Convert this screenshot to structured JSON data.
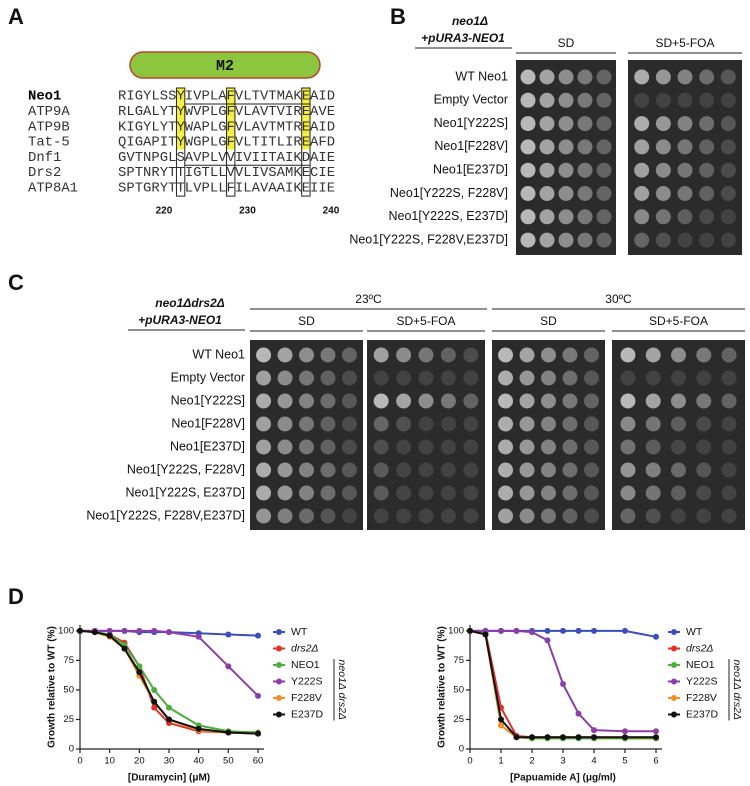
{
  "panel_labels": [
    "A",
    "B",
    "C",
    "D"
  ],
  "alignment": {
    "domain": "M2",
    "rows": [
      {
        "name": "Neo1",
        "sequence": "RIGYLSSYIVPLAFVLTVTMAKEAID"
      },
      {
        "name": "ATP9A",
        "sequence": "RLGALYTYWVPLGFVLAVTVIREAVE"
      },
      {
        "name": "ATP9B",
        "sequence": "KIGYLYTYWAPLGFVLAVTMTREAID"
      },
      {
        "name": "Tat-5",
        "sequence": "QIGAPITYWGPLGFVLTITLIREAFD"
      },
      {
        "name": "Dnf1",
        "sequence": "GVTNPGLSAVPLVVIVIITAIKDAIE"
      },
      {
        "name": "Drs2",
        "sequence": "SPTNRYTTIGTLLVVLIVSAMKECIE"
      },
      {
        "name": "ATP8A1",
        "sequence": "SPTGRYTTLVPLLFILAVAAIKEIIE"
      }
    ],
    "positions": [
      220,
      230,
      240
    ]
  },
  "panel_b": {
    "genotype": "neo1Δ",
    "plasmid": "+pURA3-NEO1",
    "media": [
      "SD",
      "SD+5-FOA"
    ],
    "strains": [
      "WT Neo1",
      "Empty Vector",
      "Neo1[Y222S]",
      "Neo1[F228V]",
      "Neo1[E237D]",
      "Neo1[Y222S, F228V]",
      "Neo1[Y222S, E237D]",
      "Neo1[Y222S, F228V,E237D]"
    ]
  },
  "panel_c": {
    "genotype": "neo1Δdrs2Δ",
    "plasmid": "+pURA3-NEO1",
    "temperatures": [
      "23ºC",
      "30ºC"
    ],
    "media": [
      "SD",
      "SD+5-FOA",
      "SD",
      "SD+5-FOA"
    ],
    "strains": [
      "WT Neo1",
      "Empty Vector",
      "Neo1[Y222S]",
      "Neo1[F228V]",
      "Neo1[E237D]",
      "Neo1[Y222S, F228V]",
      "Neo1[Y222S, E237D]",
      "Neo1[Y222S, F228V,E237D]"
    ]
  },
  "chart_data": [
    {
      "type": "line",
      "xlabel": "[Duramycin] (μM)",
      "ylabel": "Growth relative to WT (%)",
      "x": [
        0,
        5,
        10,
        15,
        20,
        25,
        30,
        40,
        50,
        60
      ],
      "xlim": [
        0,
        60
      ],
      "ylim": [
        0,
        105
      ],
      "xticks": [
        0,
        10,
        20,
        30,
        40,
        50,
        60
      ],
      "yticks": [
        0,
        25,
        50,
        75,
        100
      ],
      "legend_group_label": "neo1Δ drs2Δ",
      "series": [
        {
          "name": "WT",
          "color": "#3b4fb8",
          "values": [
            100,
            100,
            100,
            100,
            99,
            99,
            99,
            98,
            97,
            96
          ]
        },
        {
          "name": "drs2Δ",
          "color": "#e0322b",
          "values": [
            100,
            99,
            97,
            90,
            70,
            35,
            22,
            15,
            14,
            13
          ]
        },
        {
          "name": "NEO1",
          "color": "#4cae3c",
          "values": [
            100,
            99,
            97,
            88,
            70,
            50,
            35,
            20,
            15,
            14
          ]
        },
        {
          "name": "Y222S",
          "color": "#8a3fa8",
          "values": [
            100,
            100,
            100,
            100,
            100,
            100,
            99,
            95,
            70,
            45
          ]
        },
        {
          "name": "F228V",
          "color": "#f0902a",
          "values": [
            100,
            99,
            95,
            85,
            62,
            40,
            25,
            16,
            14,
            13
          ]
        },
        {
          "name": "E237D",
          "color": "#111111",
          "values": [
            100,
            99,
            96,
            85,
            65,
            40,
            25,
            17,
            14,
            13
          ]
        }
      ]
    },
    {
      "type": "line",
      "xlabel": "[Papuamide A] (μg/ml)",
      "ylabel": "Growth relative to WT (%)",
      "x": [
        0,
        0.5,
        1,
        1.5,
        2,
        2.5,
        3,
        3.5,
        4,
        5,
        6
      ],
      "xlim": [
        0,
        6
      ],
      "ylim": [
        0,
        105
      ],
      "xticks": [
        0,
        1,
        2,
        3,
        4,
        5,
        6
      ],
      "yticks": [
        0,
        25,
        50,
        75,
        100
      ],
      "legend_group_label": "neo1Δ drs2Δ",
      "series": [
        {
          "name": "WT",
          "color": "#3b4fb8",
          "values": [
            100,
            100,
            100,
            100,
            100,
            100,
            100,
            100,
            100,
            100,
            95
          ]
        },
        {
          "name": "drs2Δ",
          "color": "#e0322b",
          "values": [
            100,
            99,
            35,
            11,
            10,
            10,
            10,
            10,
            10,
            9,
            9
          ]
        },
        {
          "name": "NEO1",
          "color": "#4cae3c",
          "values": [
            100,
            98,
            20,
            10,
            9,
            9,
            9,
            9,
            9,
            9,
            9
          ]
        },
        {
          "name": "Y222S",
          "color": "#8a3fa8",
          "values": [
            100,
            100,
            100,
            100,
            99,
            92,
            55,
            30,
            16,
            15,
            15
          ]
        },
        {
          "name": "F228V",
          "color": "#f0902a",
          "values": [
            100,
            97,
            20,
            10,
            10,
            10,
            10,
            10,
            10,
            10,
            10
          ]
        },
        {
          "name": "E237D",
          "color": "#111111",
          "values": [
            100,
            97,
            25,
            10,
            10,
            10,
            10,
            10,
            10,
            10,
            10
          ]
        }
      ]
    }
  ]
}
